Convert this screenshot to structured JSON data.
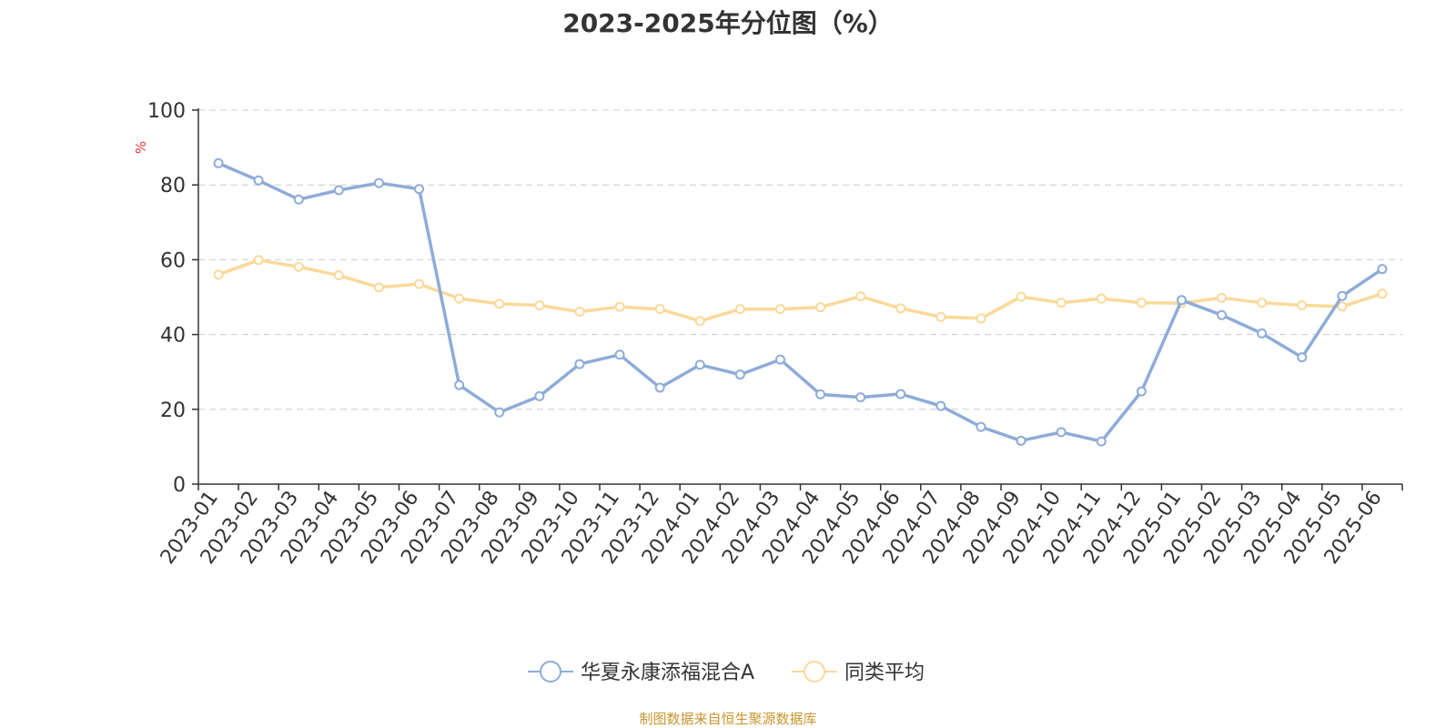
{
  "chart_data": {
    "type": "line",
    "title": "2023-2025年分位图（%）",
    "ylabel": "%",
    "ylim": [
      0,
      100
    ],
    "yticks": [
      0,
      20,
      40,
      60,
      80,
      100
    ],
    "grid": true,
    "legend_position": "bottom",
    "categories": [
      "2023-01",
      "2023-02",
      "2023-03",
      "2023-04",
      "2023-05",
      "2023-06",
      "2023-07",
      "2023-08",
      "2023-09",
      "2023-10",
      "2023-11",
      "2023-12",
      "2024-01",
      "2024-02",
      "2024-03",
      "2024-04",
      "2024-05",
      "2024-06",
      "2024-07",
      "2024-08",
      "2024-09",
      "2024-10",
      "2024-11",
      "2024-12",
      "2025-01",
      "2025-02",
      "2025-03",
      "2025-04",
      "2025-05",
      "2025-06"
    ],
    "series": [
      {
        "name": "华夏永康添福混合A",
        "color": "#8eacd8",
        "values": [
          85.8,
          81.2,
          76.1,
          78.6,
          80.5,
          78.9,
          26.5,
          19.2,
          23.5,
          32.1,
          34.6,
          25.8,
          31.9,
          29.3,
          33.3,
          24.0,
          23.2,
          24.1,
          20.9,
          15.3,
          11.6,
          13.9,
          11.4,
          24.8,
          49.2,
          45.2,
          40.3,
          33.9,
          50.3,
          57.5
        ]
      },
      {
        "name": "同类平均",
        "color": "#fbd99a",
        "values": [
          56.0,
          59.9,
          58.1,
          55.8,
          52.6,
          53.5,
          49.6,
          48.2,
          47.8,
          46.1,
          47.4,
          46.8,
          43.6,
          46.8,
          46.8,
          47.3,
          50.2,
          47.0,
          44.7,
          44.3,
          50.1,
          48.5,
          49.6,
          48.5,
          48.4,
          49.8,
          48.5,
          47.8,
          47.5,
          50.9
        ]
      }
    ]
  },
  "source": "制图数据来自恒生聚源数据库"
}
